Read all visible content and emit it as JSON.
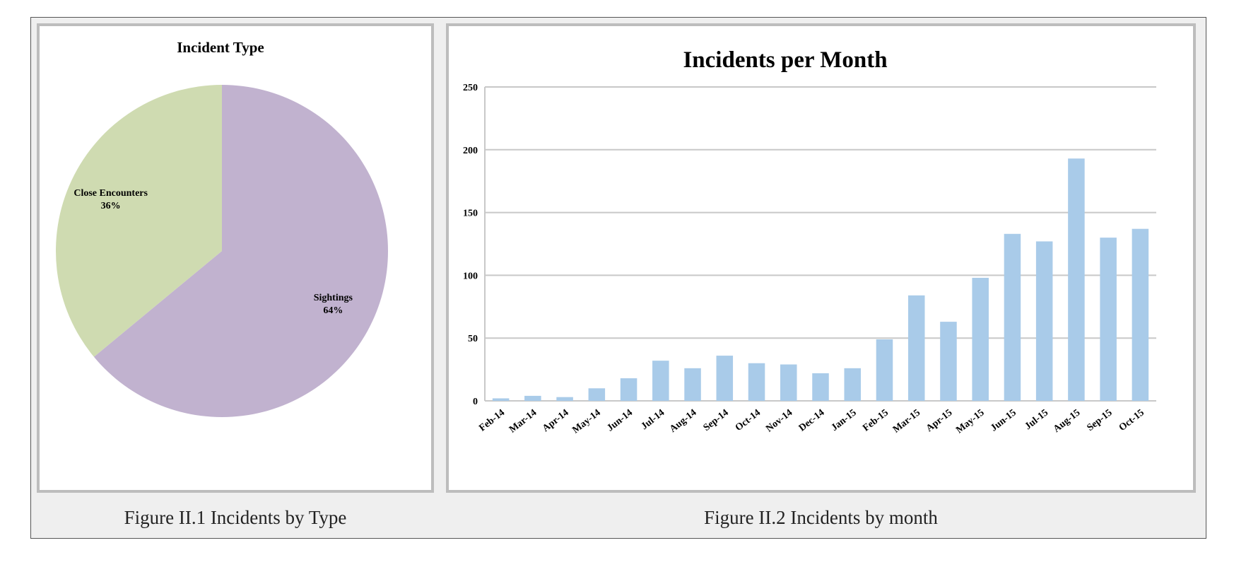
{
  "captions": {
    "left": "Figure II.1 Incidents by Type",
    "right": "Figure II.2 Incidents by month"
  },
  "chart_data": [
    {
      "type": "pie",
      "title": "Incident Type",
      "slices": [
        {
          "label": "Sightings",
          "value": 64,
          "percent_label": "64%",
          "color": "#c1b2cf"
        },
        {
          "label": "Close Encounters",
          "value": 36,
          "percent_label": "36%",
          "color": "#cfdbb1"
        }
      ]
    },
    {
      "type": "bar",
      "title": "Incidents per Month",
      "xlabel": "",
      "ylabel": "",
      "ylim": [
        0,
        250
      ],
      "yticks": [
        0,
        50,
        100,
        150,
        200,
        250
      ],
      "grid": true,
      "bar_color": "#a9cbe9",
      "categories": [
        "Feb-14",
        "Mar-14",
        "Apr-14",
        "May-14",
        "Jun-14",
        "Jul-14",
        "Aug-14",
        "Sep-14",
        "Oct-14",
        "Nov-14",
        "Dec-14",
        "Jan-15",
        "Feb-15",
        "Mar-15",
        "Apr-15",
        "May-15",
        "Jun-15",
        "Jul-15",
        "Aug-15",
        "Sep-15",
        "Oct-15"
      ],
      "values": [
        2,
        4,
        3,
        10,
        18,
        32,
        26,
        36,
        30,
        29,
        22,
        26,
        49,
        84,
        63,
        98,
        133,
        127,
        193,
        130,
        137
      ]
    }
  ]
}
